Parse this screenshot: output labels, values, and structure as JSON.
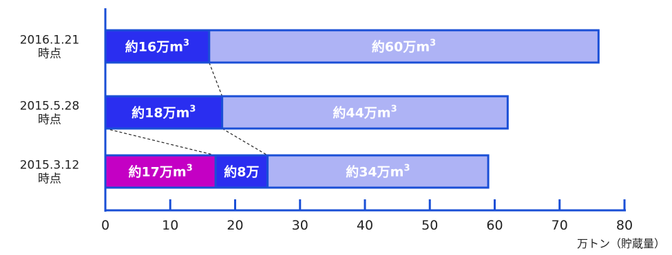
{
  "chart_data": {
    "type": "bar",
    "orientation": "horizontal",
    "stacked": true,
    "categories": [
      {
        "line1": "2016.1.21",
        "line2": "時点"
      },
      {
        "line1": "2015.5.28",
        "line2": "時点"
      },
      {
        "line1": "2015.3.12",
        "line2": "時点"
      }
    ],
    "bars": [
      [
        {
          "value": 16,
          "label": "約16万m",
          "sup": "3",
          "color": "#2a2ef0"
        },
        {
          "value": 60,
          "label": "約60万m",
          "sup": "3",
          "color": "#aeb3f5"
        }
      ],
      [
        {
          "value": 18,
          "label": "約18万m",
          "sup": "3",
          "color": "#2a2ef0"
        },
        {
          "value": 44,
          "label": "約44万m",
          "sup": "3",
          "color": "#aeb3f5"
        }
      ],
      [
        {
          "value": 17,
          "label": "約17万m",
          "sup": "3",
          "color": "#c400c4"
        },
        {
          "value": 8,
          "label": "約8万",
          "sup": "",
          "color": "#2a2ef0"
        },
        {
          "value": 34,
          "label": "約34万m",
          "sup": "3",
          "color": "#aeb3f5"
        }
      ]
    ],
    "xlim": [
      0,
      80
    ],
    "xticks": [
      0,
      10,
      20,
      30,
      40,
      50,
      60,
      70,
      80
    ],
    "xunit": "万トン（貯蔵量）",
    "border_color": "#1a4fd6",
    "axis_color": "#1a4fd6",
    "connectors": [
      {
        "from_bar": 0,
        "from_x": 16,
        "to_bar": 1,
        "to_x": 18
      },
      {
        "from_bar": 1,
        "from_x": 0,
        "to_bar": 2,
        "to_x": 17
      },
      {
        "from_bar": 1,
        "from_x": 18,
        "to_bar": 2,
        "to_x": 25
      }
    ]
  }
}
